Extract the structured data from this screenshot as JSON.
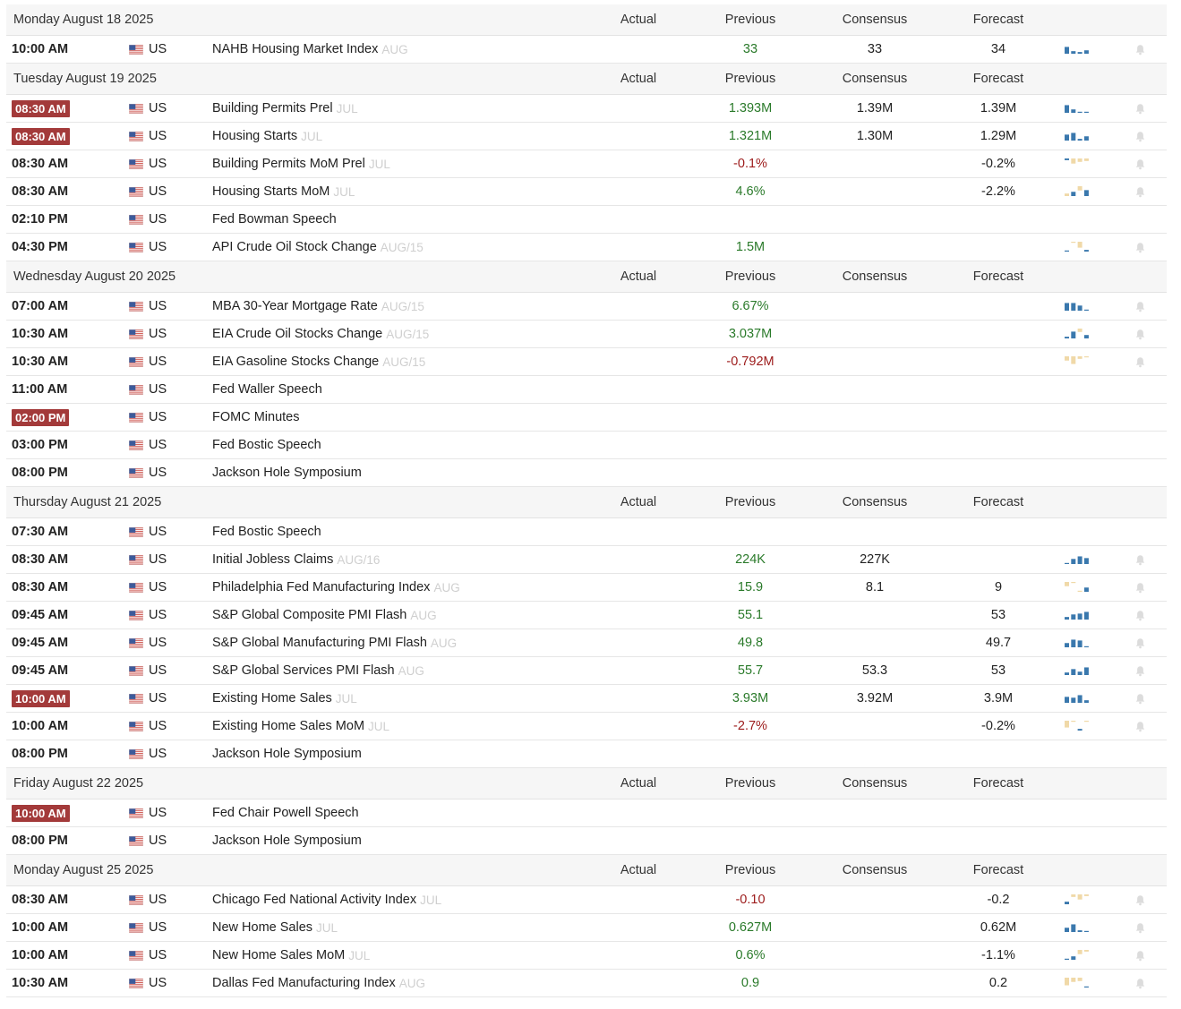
{
  "headers": {
    "actual": "Actual",
    "previous": "Previous",
    "consensus": "Consensus",
    "forecast": "Forecast"
  },
  "colors": {
    "positive": "#2a7a2a",
    "negative": "#9c1a1a",
    "highlight_badge": "#a33a3a",
    "spark_blue": "#3a78ad",
    "spark_tan": "#f0d9a8"
  },
  "days": [
    {
      "date": "Monday August 18 2025",
      "events": [
        {
          "time": "10:00 AM",
          "highlight": false,
          "country": "US",
          "event": "NAHB Housing Market Index",
          "ref": "AUG",
          "actual": "",
          "previous": "33",
          "previous_dir": "pos",
          "consensus": "33",
          "forecast": "34",
          "spark": [
            [
              8,
              "b"
            ],
            [
              3,
              "b"
            ],
            [
              2,
              "b"
            ],
            [
              4,
              "b"
            ]
          ]
        }
      ]
    },
    {
      "date": "Tuesday August 19 2025",
      "events": [
        {
          "time": "08:30 AM",
          "highlight": true,
          "country": "US",
          "event": "Building Permits Prel",
          "ref": "JUL",
          "actual": "",
          "previous": "1.393M",
          "previous_dir": "pos",
          "consensus": "1.39M",
          "forecast": "1.39M",
          "spark": [
            [
              9,
              "b"
            ],
            [
              4,
              "b"
            ],
            [
              1,
              "b"
            ],
            [
              1,
              "b"
            ]
          ]
        },
        {
          "time": "08:30 AM",
          "highlight": true,
          "country": "US",
          "event": "Housing Starts",
          "ref": "JUL",
          "actual": "",
          "previous": "1.321M",
          "previous_dir": "pos",
          "consensus": "1.30M",
          "forecast": "1.29M",
          "spark": [
            [
              7,
              "b"
            ],
            [
              9,
              "b"
            ],
            [
              2,
              "b"
            ],
            [
              5,
              "b"
            ]
          ]
        },
        {
          "time": "08:30 AM",
          "highlight": false,
          "country": "US",
          "event": "Building Permits MoM Prel",
          "ref": "JUL",
          "actual": "",
          "previous": "-0.1%",
          "previous_dir": "neg",
          "consensus": "",
          "forecast": "-0.2%",
          "spark": [
            [
              -2,
              "b"
            ],
            [
              -6,
              "t"
            ],
            [
              -4,
              "t"
            ],
            [
              -3,
              "t"
            ]
          ]
        },
        {
          "time": "08:30 AM",
          "highlight": false,
          "country": "US",
          "event": "Housing Starts MoM",
          "ref": "JUL",
          "actual": "",
          "previous": "4.6%",
          "previous_dir": "pos",
          "consensus": "",
          "forecast": "-2.2%",
          "spark": [
            [
              3,
              "t"
            ],
            [
              5,
              "b"
            ],
            [
              -5,
              "t"
            ],
            [
              7,
              "b"
            ]
          ]
        },
        {
          "time": "02:10 PM",
          "highlight": false,
          "country": "US",
          "event": "Fed Bowman Speech",
          "ref": "",
          "actual": "",
          "previous": "",
          "previous_dir": "neu",
          "consensus": "",
          "forecast": "",
          "spark": []
        },
        {
          "time": "04:30 PM",
          "highlight": false,
          "country": "US",
          "event": "API Crude Oil Stock Change",
          "ref": "AUG/15",
          "actual": "",
          "previous": "1.5M",
          "previous_dir": "pos",
          "consensus": "",
          "forecast": "",
          "spark": [
            [
              1,
              "b"
            ],
            [
              -1,
              "t"
            ],
            [
              -7,
              "t"
            ],
            [
              2,
              "b"
            ]
          ]
        }
      ]
    },
    {
      "date": "Wednesday August 20 2025",
      "events": [
        {
          "time": "07:00 AM",
          "highlight": false,
          "country": "US",
          "event": "MBA 30-Year Mortgage Rate",
          "ref": "AUG/15",
          "actual": "",
          "previous": "6.67%",
          "previous_dir": "pos",
          "consensus": "",
          "forecast": "",
          "spark": [
            [
              9,
              "b"
            ],
            [
              9,
              "b"
            ],
            [
              6,
              "b"
            ],
            [
              1,
              "b"
            ]
          ]
        },
        {
          "time": "10:30 AM",
          "highlight": false,
          "country": "US",
          "event": "EIA Crude Oil Stocks Change",
          "ref": "AUG/15",
          "actual": "",
          "previous": "3.037M",
          "previous_dir": "pos",
          "consensus": "",
          "forecast": "",
          "spark": [
            [
              2,
              "b"
            ],
            [
              8,
              "b"
            ],
            [
              -4,
              "t"
            ],
            [
              4,
              "b"
            ]
          ]
        },
        {
          "time": "10:30 AM",
          "highlight": false,
          "country": "US",
          "event": "EIA Gasoline Stocks Change",
          "ref": "AUG/15",
          "actual": "",
          "previous": "-0.792M",
          "previous_dir": "neg",
          "consensus": "",
          "forecast": "",
          "spark": [
            [
              -5,
              "t"
            ],
            [
              -9,
              "t"
            ],
            [
              -3,
              "t"
            ],
            [
              -1,
              "t"
            ]
          ]
        },
        {
          "time": "11:00 AM",
          "highlight": false,
          "country": "US",
          "event": "Fed Waller Speech",
          "ref": "",
          "actual": "",
          "previous": "",
          "previous_dir": "neu",
          "consensus": "",
          "forecast": "",
          "spark": []
        },
        {
          "time": "02:00 PM",
          "highlight": true,
          "country": "US",
          "event": "FOMC Minutes",
          "ref": "",
          "actual": "",
          "previous": "",
          "previous_dir": "neu",
          "consensus": "",
          "forecast": "",
          "spark": []
        },
        {
          "time": "03:00 PM",
          "highlight": false,
          "country": "US",
          "event": "Fed Bostic Speech",
          "ref": "",
          "actual": "",
          "previous": "",
          "previous_dir": "neu",
          "consensus": "",
          "forecast": "",
          "spark": []
        },
        {
          "time": "08:00 PM",
          "highlight": false,
          "country": "US",
          "event": "Jackson Hole Symposium",
          "ref": "",
          "actual": "",
          "previous": "",
          "previous_dir": "neu",
          "consensus": "",
          "forecast": "",
          "spark": []
        }
      ]
    },
    {
      "date": "Thursday August 21 2025",
      "events": [
        {
          "time": "07:30 AM",
          "highlight": false,
          "country": "US",
          "event": "Fed Bostic Speech",
          "ref": "",
          "actual": "",
          "previous": "",
          "previous_dir": "neu",
          "consensus": "",
          "forecast": "",
          "spark": []
        },
        {
          "time": "08:30 AM",
          "highlight": false,
          "country": "US",
          "event": "Initial Jobless Claims",
          "ref": "AUG/16",
          "actual": "",
          "previous": "224K",
          "previous_dir": "pos",
          "consensus": "227K",
          "forecast": "",
          "spark": [
            [
              1,
              "b"
            ],
            [
              6,
              "b"
            ],
            [
              9,
              "b"
            ],
            [
              7,
              "b"
            ]
          ]
        },
        {
          "time": "08:30 AM",
          "highlight": false,
          "country": "US",
          "event": "Philadelphia Fed Manufacturing Index",
          "ref": "AUG",
          "actual": "",
          "previous": "15.9",
          "previous_dir": "pos",
          "consensus": "8.1",
          "forecast": "9",
          "spark": [
            [
              -5,
              "t"
            ],
            [
              -1,
              "t"
            ],
            [
              1,
              "t"
            ],
            [
              5,
              "b"
            ]
          ]
        },
        {
          "time": "09:45 AM",
          "highlight": false,
          "country": "US",
          "event": "S&P Global Composite PMI Flash",
          "ref": "AUG",
          "actual": "",
          "previous": "55.1",
          "previous_dir": "pos",
          "consensus": "",
          "forecast": "53",
          "spark": [
            [
              3,
              "b"
            ],
            [
              6,
              "b"
            ],
            [
              7,
              "b"
            ],
            [
              9,
              "b"
            ]
          ]
        },
        {
          "time": "09:45 AM",
          "highlight": false,
          "country": "US",
          "event": "S&P Global Manufacturing PMI Flash",
          "ref": "AUG",
          "actual": "",
          "previous": "49.8",
          "previous_dir": "pos",
          "consensus": "",
          "forecast": "49.7",
          "spark": [
            [
              5,
              "b"
            ],
            [
              9,
              "b"
            ],
            [
              8,
              "b"
            ],
            [
              1,
              "b"
            ]
          ]
        },
        {
          "time": "09:45 AM",
          "highlight": false,
          "country": "US",
          "event": "S&P Global Services PMI Flash",
          "ref": "AUG",
          "actual": "",
          "previous": "55.7",
          "previous_dir": "pos",
          "consensus": "53.3",
          "forecast": "53",
          "spark": [
            [
              3,
              "b"
            ],
            [
              7,
              "b"
            ],
            [
              4,
              "b"
            ],
            [
              9,
              "b"
            ]
          ]
        },
        {
          "time": "10:00 AM",
          "highlight": true,
          "country": "US",
          "event": "Existing Home Sales",
          "ref": "JUL",
          "actual": "",
          "previous": "3.93M",
          "previous_dir": "pos",
          "consensus": "3.92M",
          "forecast": "3.9M",
          "spark": [
            [
              7,
              "b"
            ],
            [
              6,
              "b"
            ],
            [
              9,
              "b"
            ],
            [
              3,
              "b"
            ]
          ]
        },
        {
          "time": "10:00 AM",
          "highlight": false,
          "country": "US",
          "event": "Existing Home Sales MoM",
          "ref": "JUL",
          "actual": "",
          "previous": "-2.7%",
          "previous_dir": "neg",
          "consensus": "",
          "forecast": "-0.2%",
          "spark": [
            [
              -8,
              "t"
            ],
            [
              -1,
              "t"
            ],
            [
              2,
              "b"
            ],
            [
              -1,
              "t"
            ]
          ]
        },
        {
          "time": "08:00 PM",
          "highlight": false,
          "country": "US",
          "event": "Jackson Hole Symposium",
          "ref": "",
          "actual": "",
          "previous": "",
          "previous_dir": "neu",
          "consensus": "",
          "forecast": "",
          "spark": []
        }
      ]
    },
    {
      "date": "Friday August 22 2025",
      "events": [
        {
          "time": "10:00 AM",
          "highlight": true,
          "country": "US",
          "event": "Fed Chair Powell Speech",
          "ref": "",
          "actual": "",
          "previous": "",
          "previous_dir": "neu",
          "consensus": "",
          "forecast": "",
          "spark": []
        },
        {
          "time": "08:00 PM",
          "highlight": false,
          "country": "US",
          "event": "Jackson Hole Symposium",
          "ref": "",
          "actual": "",
          "previous": "",
          "previous_dir": "neu",
          "consensus": "",
          "forecast": "",
          "spark": []
        }
      ]
    },
    {
      "date": "Monday August 25 2025",
      "events": [
        {
          "time": "08:30 AM",
          "highlight": false,
          "country": "US",
          "event": "Chicago Fed National Activity Index",
          "ref": "JUL",
          "actual": "",
          "previous": "-0.10",
          "previous_dir": "neg",
          "consensus": "",
          "forecast": "-0.2",
          "spark": [
            [
              3,
              "b"
            ],
            [
              -3,
              "t"
            ],
            [
              -6,
              "t"
            ],
            [
              -2,
              "t"
            ]
          ]
        },
        {
          "time": "10:00 AM",
          "highlight": false,
          "country": "US",
          "event": "New Home Sales",
          "ref": "JUL",
          "actual": "",
          "previous": "0.627M",
          "previous_dir": "pos",
          "consensus": "",
          "forecast": "0.62M",
          "spark": [
            [
              5,
              "b"
            ],
            [
              9,
              "b"
            ],
            [
              2,
              "b"
            ],
            [
              1,
              "b"
            ]
          ]
        },
        {
          "time": "10:00 AM",
          "highlight": false,
          "country": "US",
          "event": "New Home Sales MoM",
          "ref": "JUL",
          "actual": "",
          "previous": "0.6%",
          "previous_dir": "pos",
          "consensus": "",
          "forecast": "-1.1%",
          "spark": [
            [
              1,
              "b"
            ],
            [
              4,
              "b"
            ],
            [
              -5,
              "t"
            ],
            [
              -2,
              "t"
            ]
          ]
        },
        {
          "time": "10:30 AM",
          "highlight": false,
          "country": "US",
          "event": "Dallas Fed Manufacturing Index",
          "ref": "AUG",
          "actual": "",
          "previous": "0.9",
          "previous_dir": "pos",
          "consensus": "",
          "forecast": "0.2",
          "spark": [
            [
              -9,
              "t"
            ],
            [
              -5,
              "t"
            ],
            [
              -4,
              "t"
            ],
            [
              1,
              "b"
            ]
          ]
        }
      ]
    }
  ]
}
